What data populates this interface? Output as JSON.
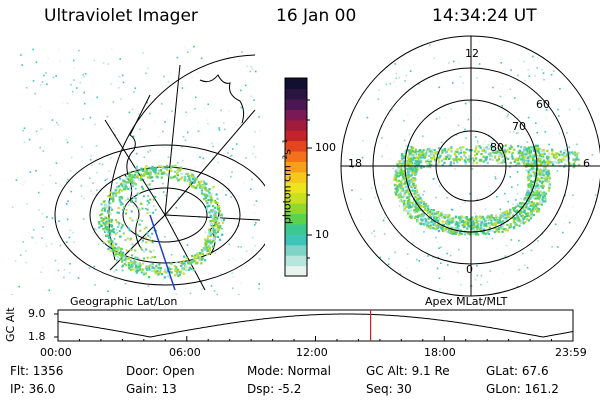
{
  "header": {
    "instrument": "Ultraviolet Imager",
    "date": "16 Jan 00",
    "time": "14:34:24 UT"
  },
  "colorbar": {
    "label": "photon cm⁻²s⁻¹",
    "ticks": [
      "100",
      "10"
    ],
    "colors": [
      "#e9f4ef",
      "#b9e6dc",
      "#7fd4c7",
      "#3fc4b9",
      "#3bc98f",
      "#5bd14e",
      "#8fd82e",
      "#c8e020",
      "#ece41f",
      "#f7c81c",
      "#f79e1a",
      "#f3711a",
      "#e3461f",
      "#c3242a",
      "#a11c3c",
      "#7a1955",
      "#4a1653",
      "#2a1440",
      "#111030"
    ]
  },
  "left_panel": {
    "label": "Geographic Lat/Lon"
  },
  "right_panel": {
    "label": "Apex MLat/MLT",
    "mlt_labels": {
      "top": "12",
      "left": "18",
      "right": "6",
      "bottom": "0"
    },
    "lat_labels": [
      "60",
      "70",
      "80"
    ]
  },
  "timeline": {
    "ylabel": "GC Alt",
    "y_ticks": [
      "9.0",
      "1.8"
    ],
    "x_ticks": [
      "00:00",
      "06:00",
      "12:00",
      "18:00",
      "23:59"
    ],
    "marker_time_hours": 14.57,
    "marker_color": "#cc2222"
  },
  "info": {
    "flt": "Flt: 1356",
    "ip": "IP: 36.0",
    "door": "Door: Open",
    "gain": "Gain: 13",
    "mode": "Mode: Normal",
    "dsp": "Dsp:    -5.2",
    "gcalt": "GC Alt: 9.1 Re",
    "seq": "Seq: 30",
    "glat": "GLat: 67.6",
    "glon": "GLon: 161.2"
  }
}
